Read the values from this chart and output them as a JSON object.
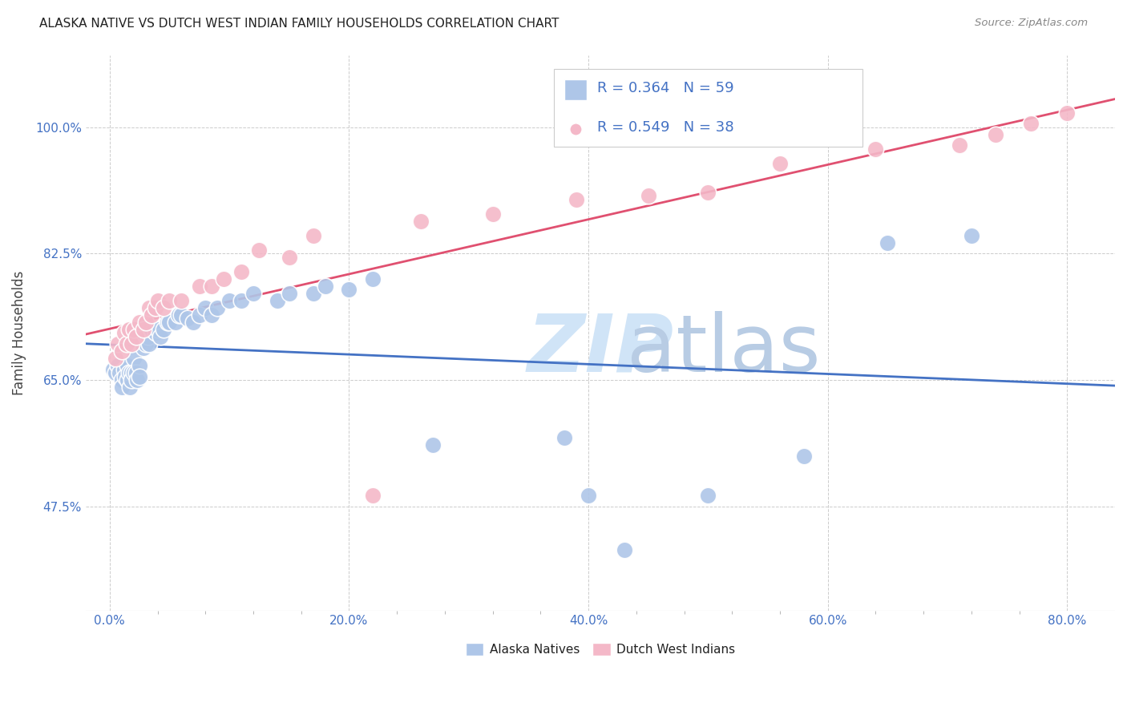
{
  "title": "ALASKA NATIVE VS DUTCH WEST INDIAN FAMILY HOUSEHOLDS CORRELATION CHART",
  "source": "Source: ZipAtlas.com",
  "ylabel": "Family Households",
  "x_ticks": [
    "0.0%",
    "",
    "",
    "",
    "",
    "20.0%",
    "",
    "",
    "",
    "",
    "40.0%",
    "",
    "",
    "",
    "",
    "60.0%",
    "",
    "",
    "",
    "",
    "80.0%"
  ],
  "x_tick_vals": [
    0.0,
    0.04,
    0.08,
    0.12,
    0.16,
    0.2,
    0.24,
    0.28,
    0.32,
    0.36,
    0.4,
    0.44,
    0.48,
    0.52,
    0.56,
    0.6,
    0.64,
    0.68,
    0.72,
    0.76,
    0.8
  ],
  "x_tick_labels_show": [
    0.0,
    0.2,
    0.4,
    0.6,
    0.8
  ],
  "x_tick_labels_text": [
    "0.0%",
    "20.0%",
    "40.0%",
    "60.0%",
    "80.0%"
  ],
  "y_tick_vals": [
    0.475,
    0.65,
    0.825,
    1.0
  ],
  "y_tick_labels": [
    "47.5%",
    "65.0%",
    "82.5%",
    "100.0%"
  ],
  "xlim": [
    -0.02,
    0.84
  ],
  "ylim": [
    0.33,
    1.1
  ],
  "blue_color": "#aec6e8",
  "pink_color": "#f4b8c8",
  "line_blue": "#4472c4",
  "line_pink": "#e05070",
  "text_color": "#4472c4",
  "watermark_color": "#d0e4f7",
  "background_color": "#ffffff",
  "grid_color": "#cccccc",
  "alaska_x": [
    0.003,
    0.005,
    0.007,
    0.008,
    0.01,
    0.01,
    0.012,
    0.013,
    0.015,
    0.015,
    0.016,
    0.017,
    0.018,
    0.018,
    0.02,
    0.02,
    0.022,
    0.023,
    0.025,
    0.025,
    0.027,
    0.028,
    0.03,
    0.03,
    0.032,
    0.033,
    0.035,
    0.038,
    0.04,
    0.042,
    0.045,
    0.048,
    0.05,
    0.055,
    0.058,
    0.06,
    0.065,
    0.07,
    0.075,
    0.08,
    0.085,
    0.09,
    0.1,
    0.11,
    0.12,
    0.14,
    0.15,
    0.17,
    0.18,
    0.2,
    0.22,
    0.27,
    0.38,
    0.4,
    0.43,
    0.5,
    0.58,
    0.65,
    0.72
  ],
  "alaska_y": [
    0.665,
    0.66,
    0.67,
    0.66,
    0.65,
    0.64,
    0.665,
    0.655,
    0.67,
    0.65,
    0.66,
    0.64,
    0.66,
    0.65,
    0.68,
    0.66,
    0.66,
    0.65,
    0.67,
    0.655,
    0.7,
    0.695,
    0.71,
    0.7,
    0.71,
    0.7,
    0.72,
    0.715,
    0.72,
    0.71,
    0.72,
    0.73,
    0.73,
    0.73,
    0.74,
    0.74,
    0.735,
    0.73,
    0.74,
    0.75,
    0.74,
    0.75,
    0.76,
    0.76,
    0.77,
    0.76,
    0.77,
    0.77,
    0.78,
    0.775,
    0.79,
    0.56,
    0.57,
    0.49,
    0.415,
    0.49,
    0.545,
    0.84,
    0.85
  ],
  "dutch_x": [
    0.005,
    0.007,
    0.01,
    0.012,
    0.014,
    0.016,
    0.018,
    0.02,
    0.022,
    0.025,
    0.028,
    0.03,
    0.033,
    0.035,
    0.038,
    0.04,
    0.045,
    0.05,
    0.06,
    0.075,
    0.085,
    0.095,
    0.11,
    0.125,
    0.15,
    0.17,
    0.22,
    0.26,
    0.32,
    0.39,
    0.45,
    0.5,
    0.56,
    0.64,
    0.71,
    0.74,
    0.77,
    0.8
  ],
  "dutch_y": [
    0.68,
    0.7,
    0.69,
    0.715,
    0.7,
    0.72,
    0.7,
    0.72,
    0.71,
    0.73,
    0.72,
    0.73,
    0.75,
    0.74,
    0.75,
    0.76,
    0.75,
    0.76,
    0.76,
    0.78,
    0.78,
    0.79,
    0.8,
    0.83,
    0.82,
    0.85,
    0.49,
    0.87,
    0.88,
    0.9,
    0.905,
    0.91,
    0.95,
    0.97,
    0.975,
    0.99,
    1.005,
    1.02
  ]
}
